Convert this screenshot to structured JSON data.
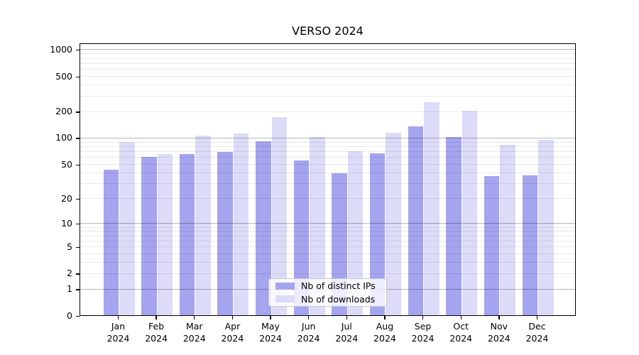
{
  "title": "VERSO 2024",
  "chart_data": {
    "type": "bar",
    "title": "VERSO 2024",
    "categories": [
      "Jan",
      "Feb",
      "Mar",
      "Apr",
      "May",
      "Jun",
      "Jul",
      "Aug",
      "Sep",
      "Oct",
      "Nov",
      "Dec"
    ],
    "category_year": "2024",
    "series": [
      {
        "name": "Nb of distinct IPs",
        "color": "#a4a4ef",
        "values": [
          43,
          60,
          64,
          68,
          90,
          54,
          39,
          66,
          133,
          101,
          36,
          37
        ]
      },
      {
        "name": "Nb of downloads",
        "color": "#dcdcf8",
        "values": [
          89,
          65,
          104,
          110,
          170,
          101,
          70,
          113,
          250,
          202,
          82,
          94
        ]
      }
    ],
    "yscale": "log(1+x)",
    "ylim": [
      0,
      1180
    ],
    "yticks": [
      0,
      1,
      2,
      5,
      10,
      20,
      50,
      100,
      200,
      500,
      1000
    ],
    "major_gridlines": [
      1,
      10,
      100,
      1000
    ],
    "minor_gridlines": [
      2,
      3,
      4,
      5,
      6,
      7,
      8,
      9,
      20,
      30,
      40,
      50,
      60,
      70,
      80,
      90,
      200,
      300,
      400,
      500,
      600,
      700,
      800,
      900
    ],
    "grid": true,
    "legend_position": "lower center"
  },
  "legend": {
    "items": [
      {
        "label": "Nb of distinct IPs",
        "color": "#a4a4ef"
      },
      {
        "label": "Nb of downloads",
        "color": "#dcdcf8"
      }
    ]
  }
}
